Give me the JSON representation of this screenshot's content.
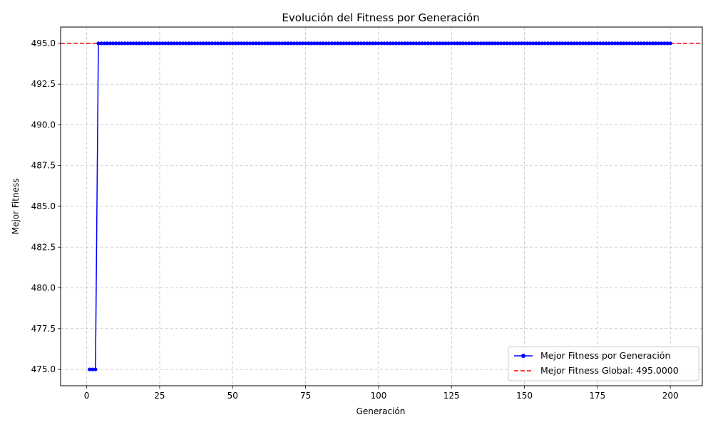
{
  "chart_data": {
    "type": "line",
    "title": "Evolución del Fitness por Generación",
    "xlabel": "Generación",
    "ylabel": "Mejor Fitness",
    "xlim": [
      -8.95,
      210.95
    ],
    "ylim": [
      474.0,
      496.0
    ],
    "xticks": [
      0,
      25,
      50,
      75,
      100,
      125,
      150,
      175,
      200
    ],
    "yticks": [
      475.0,
      477.5,
      480.0,
      482.5,
      485.0,
      487.5,
      490.0,
      492.5,
      495.0
    ],
    "ytick_labels": [
      "475.0",
      "477.5",
      "480.0",
      "482.5",
      "485.0",
      "487.5",
      "490.0",
      "492.5",
      "495.0"
    ],
    "grid": true,
    "legend_position": "bottom-right",
    "series": [
      {
        "name": "Mejor Fitness por Generación",
        "color": "#0000ff",
        "marker": "circle",
        "x_range": [
          1,
          200
        ],
        "segments": [
          {
            "from": 1,
            "to": 3,
            "value": 475.0
          },
          {
            "from": 4,
            "to": 200,
            "value": 495.0
          }
        ]
      }
    ],
    "reference_lines": [
      {
        "name": "Mejor Fitness Global: 495.0000",
        "y": 495.0,
        "color": "#ff0000",
        "style": "dashed"
      }
    ]
  }
}
